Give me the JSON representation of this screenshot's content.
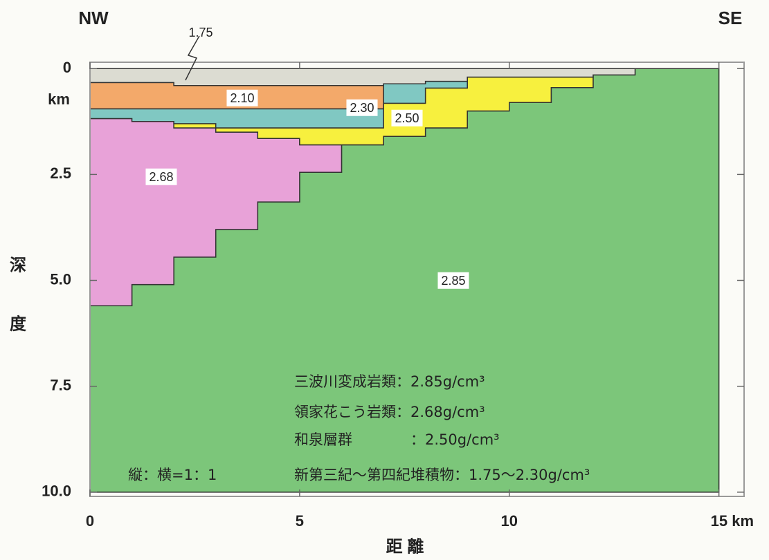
{
  "chart_data": {
    "type": "section",
    "left_end": "NW",
    "right_end": "SE",
    "x_label": "距 離",
    "y_label": [
      "深",
      "度"
    ],
    "y_unit": "km",
    "xlim": [
      0,
      15.6
    ],
    "ylim": [
      10.1,
      -0.15
    ],
    "xticks": [
      0,
      5,
      10,
      {
        "value": 15,
        "label": "15 km"
      }
    ],
    "yticks": [
      0,
      2.5,
      {
        "value": 5,
        "label": "5.0"
      },
      7.5,
      {
        "value": 10,
        "label": "10.0"
      }
    ],
    "layers": [
      {
        "name": "2.85",
        "color": "#7cc67a",
        "x": [
          0,
          1,
          1,
          2,
          2,
          3,
          3,
          4,
          4,
          5,
          5,
          6,
          6,
          7,
          7,
          8,
          8,
          9,
          9,
          10,
          10,
          11,
          11,
          12,
          12,
          13,
          13,
          15,
          15,
          0
        ],
        "y": [
          5.6,
          5.6,
          5.1,
          5.1,
          4.45,
          4.45,
          3.8,
          3.8,
          3.15,
          3.15,
          2.45,
          2.45,
          1.8,
          1.8,
          1.6,
          1.6,
          1.4,
          1.4,
          1.0,
          1.0,
          0.8,
          0.8,
          0.45,
          0.45,
          0.15,
          0.15,
          0,
          0,
          10,
          10
        ]
      },
      {
        "name": "2.68",
        "color": "#e8a2d8",
        "x": [
          0,
          1,
          1,
          2,
          2,
          3,
          3,
          4,
          4,
          5,
          5,
          6,
          6,
          5,
          5,
          4,
          4,
          3,
          3,
          2,
          2,
          1,
          1,
          0
        ],
        "y": [
          1.18,
          1.18,
          1.25,
          1.25,
          1.4,
          1.4,
          1.5,
          1.5,
          1.65,
          1.65,
          1.8,
          1.8,
          2.45,
          2.45,
          3.15,
          3.15,
          3.8,
          3.8,
          4.45,
          4.45,
          5.1,
          5.1,
          5.6,
          5.6
        ]
      },
      {
        "name": "2.50",
        "color": "#f7f03e",
        "x": [
          2,
          3,
          3,
          7,
          7,
          8,
          8,
          9,
          9,
          12,
          12,
          11,
          11,
          10,
          10,
          9,
          9,
          8,
          8,
          7,
          7,
          5,
          5,
          4,
          4,
          3,
          3,
          2
        ],
        "y": [
          1.3,
          1.3,
          1.4,
          1.4,
          0.82,
          0.82,
          0.46,
          0.46,
          0.2,
          0.2,
          0.45,
          0.45,
          0.8,
          0.8,
          1.0,
          1.0,
          1.4,
          1.4,
          1.6,
          1.6,
          1.8,
          1.8,
          1.65,
          1.65,
          1.5,
          1.5,
          1.4,
          1.4
        ]
      },
      {
        "name": "2.30",
        "color": "#80c8c2",
        "x": [
          0,
          7,
          7,
          8,
          8,
          9,
          9,
          8,
          8,
          7,
          7,
          3,
          3,
          2,
          2,
          1,
          1,
          0
        ],
        "y": [
          0.95,
          0.95,
          0.36,
          0.36,
          0.3,
          0.3,
          0.46,
          0.46,
          0.82,
          0.82,
          1.4,
          1.4,
          1.3,
          1.3,
          1.25,
          1.25,
          1.18,
          1.18
        ]
      },
      {
        "name": "2.10",
        "color": "#f3a96a",
        "x": [
          0,
          2,
          2,
          7,
          7,
          0
        ],
        "y": [
          0.33,
          0.33,
          0.4,
          0.4,
          0.95,
          0.95
        ]
      },
      {
        "name": "1.75",
        "color": "#dcdcd2",
        "x": [
          0,
          13,
          13,
          12,
          12,
          9,
          9,
          8,
          8,
          7,
          7,
          2,
          2,
          0
        ],
        "y": [
          0,
          0,
          0.15,
          0.15,
          0.2,
          0.2,
          0.3,
          0.3,
          0.36,
          0.36,
          0.4,
          0.4,
          0.33,
          0.33
        ]
      }
    ],
    "notes": [
      "三波川変成岩類：2.85g/cm³",
      "領家花こう岩類：2.68g/cm³",
      "和泉層群　　　　：2.50g/cm³",
      "新第三紀～第四紀堆積物：1.75～2.30g/cm³"
    ],
    "scale_note": "縦：横=1：1"
  }
}
